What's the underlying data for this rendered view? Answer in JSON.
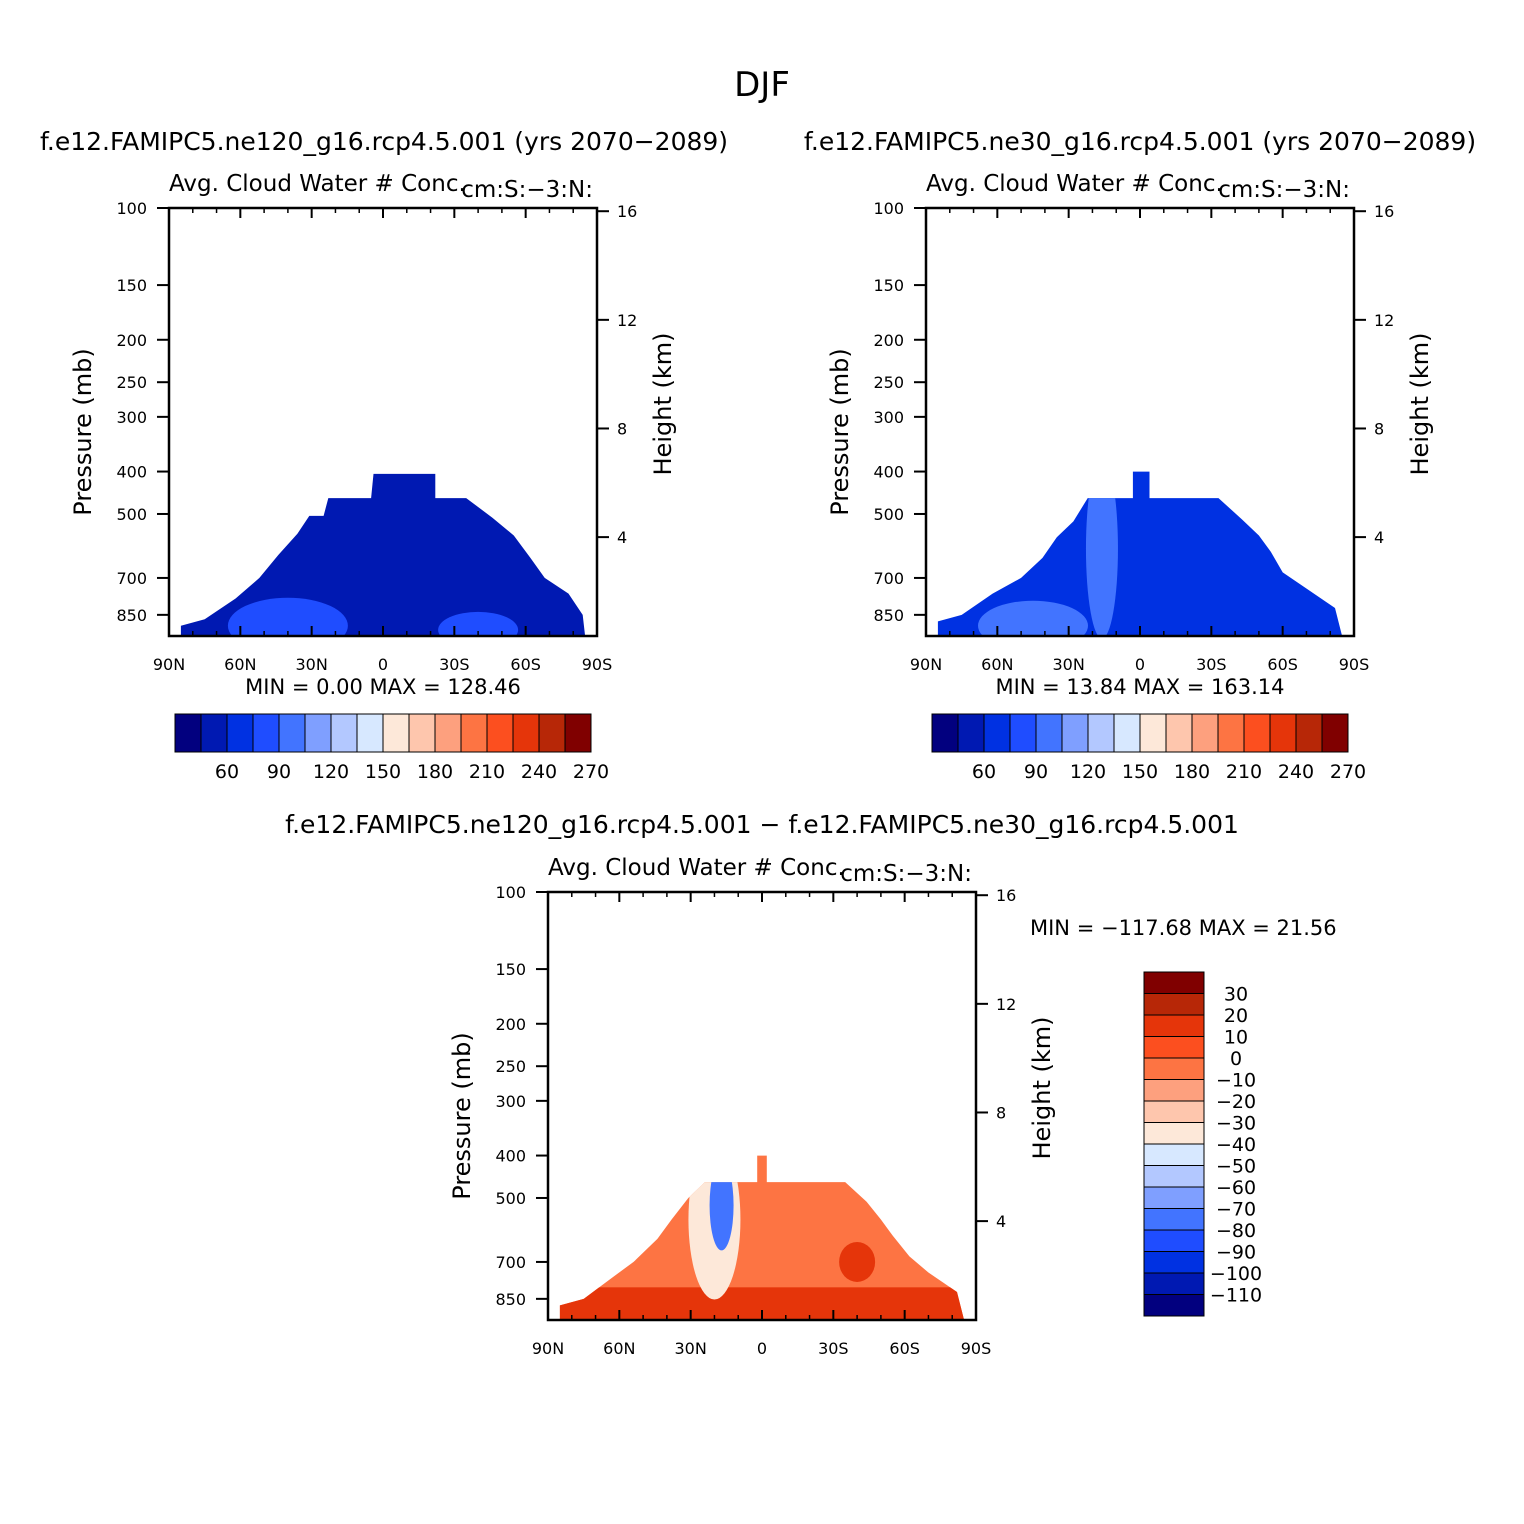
{
  "figure": {
    "title": "DJF"
  },
  "colors": {
    "abs_palette": [
      "#02007f",
      "#0019b2",
      "#0031e2",
      "#1f4dff",
      "#4274ff",
      "#7f9fff",
      "#b3c8ff",
      "#d7e8ff",
      "#fde8d9",
      "#fec6ad",
      "#fda07e",
      "#fd7443",
      "#fc4f1f",
      "#e5350a",
      "#b72707",
      "#800000"
    ],
    "diff_palette": [
      "#02007f",
      "#0019b2",
      "#0031e2",
      "#1f4dff",
      "#4274ff",
      "#7f9fff",
      "#b3c8ff",
      "#d7e8ff",
      "#fde8d9",
      "#fec6ad",
      "#fda07e",
      "#fd7443",
      "#fc4f1f",
      "#e5350a",
      "#b72707",
      "#800000"
    ]
  },
  "chart_data": [
    {
      "type": "heatmap",
      "panel": "top-left",
      "case_title": "f.e12.FAMIPC5.ne120_g16.rcp4.5.001 (yrs 2070−2089)",
      "left_title": "Avg. Cloud Water # Conc.",
      "right_title": "cm:S:−3:N:",
      "ylabel": "Pressure (mb)",
      "ylabel_right": "Height (km)",
      "x_ticklabels": [
        "90N",
        "60N",
        "30N",
        "0",
        "30S",
        "60S",
        "90S"
      ],
      "x_ticks": [
        90,
        60,
        30,
        0,
        -30,
        -60,
        -90
      ],
      "xlim": [
        90,
        -90
      ],
      "y_ticklabels": [
        "100",
        "150",
        "200",
        "250",
        "300",
        "400",
        "500",
        "700",
        "850"
      ],
      "y_ticks": [
        100,
        150,
        200,
        250,
        300,
        400,
        500,
        700,
        850
      ],
      "ylim": [
        100,
        950
      ],
      "yscale": "log",
      "height_ticklabels": [
        "16",
        "12",
        "8",
        "4"
      ],
      "height_ticks": [
        16,
        12,
        8,
        4
      ],
      "stats_text": "MIN =    0.00   MAX =  128.46",
      "min": 0.0,
      "max": 128.46,
      "colorbar": {
        "orientation": "horizontal",
        "labels": [
          "60",
          "90",
          "120",
          "150",
          "180",
          "210",
          "240",
          "270"
        ],
        "levels": [
          60,
          90,
          120,
          150,
          180,
          210,
          240,
          270
        ]
      },
      "field": {
        "outline": [
          [
            85,
            950
          ],
          [
            85,
            900
          ],
          [
            75,
            870
          ],
          [
            62,
            780
          ],
          [
            52,
            700
          ],
          [
            44,
            620
          ],
          [
            36,
            555
          ],
          [
            31,
            505
          ],
          [
            25,
            505
          ],
          [
            23,
            460
          ],
          [
            5,
            460
          ],
          [
            4,
            405
          ],
          [
            -22,
            405
          ],
          [
            -22,
            460
          ],
          [
            -35,
            460
          ],
          [
            -46,
            510
          ],
          [
            -55,
            560
          ],
          [
            -62,
            630
          ],
          [
            -68,
            700
          ],
          [
            -78,
            760
          ],
          [
            -84,
            850
          ],
          [
            -85,
            950
          ]
        ],
        "dominant_value": 40,
        "low_level_value": 80
      }
    },
    {
      "type": "heatmap",
      "panel": "top-right",
      "case_title": "f.e12.FAMIPC5.ne30_g16.rcp4.5.001 (yrs 2070−2089)",
      "left_title": "Avg. Cloud Water # Conc.",
      "right_title": "cm:S:−3:N:",
      "ylabel": "Pressure (mb)",
      "ylabel_right": "Height (km)",
      "x_ticklabels": [
        "90N",
        "60N",
        "30N",
        "0",
        "30S",
        "60S",
        "90S"
      ],
      "x_ticks": [
        90,
        60,
        30,
        0,
        -30,
        -60,
        -90
      ],
      "xlim": [
        90,
        -90
      ],
      "y_ticklabels": [
        "100",
        "150",
        "200",
        "250",
        "300",
        "400",
        "500",
        "700",
        "850"
      ],
      "y_ticks": [
        100,
        150,
        200,
        250,
        300,
        400,
        500,
        700,
        850
      ],
      "ylim": [
        100,
        950
      ],
      "yscale": "log",
      "height_ticklabels": [
        "16",
        "12",
        "8",
        "4"
      ],
      "height_ticks": [
        16,
        12,
        8,
        4
      ],
      "stats_text": "MIN =   13.84   MAX =  163.14",
      "min": 13.84,
      "max": 163.14,
      "colorbar": {
        "orientation": "horizontal",
        "labels": [
          "60",
          "90",
          "120",
          "150",
          "180",
          "210",
          "240",
          "270"
        ],
        "levels": [
          60,
          90,
          120,
          150,
          180,
          210,
          240,
          270
        ]
      },
      "field": {
        "outline": [
          [
            85,
            950
          ],
          [
            85,
            880
          ],
          [
            75,
            850
          ],
          [
            62,
            760
          ],
          [
            50,
            700
          ],
          [
            41,
            630
          ],
          [
            35,
            565
          ],
          [
            28,
            520
          ],
          [
            22,
            460
          ],
          [
            3,
            460
          ],
          [
            3,
            400
          ],
          [
            -4,
            400
          ],
          [
            -4,
            460
          ],
          [
            -33,
            460
          ],
          [
            -43,
            515
          ],
          [
            -50,
            560
          ],
          [
            -55,
            610
          ],
          [
            -60,
            680
          ],
          [
            -70,
            740
          ],
          [
            -82,
            820
          ],
          [
            -85,
            950
          ]
        ],
        "dominant_value": 50,
        "tropical_value": 90
      }
    },
    {
      "type": "heatmap",
      "panel": "bottom",
      "case_title": "f.e12.FAMIPC5.ne120_g16.rcp4.5.001 − f.e12.FAMIPC5.ne30_g16.rcp4.5.001",
      "left_title": "Avg. Cloud Water # Conc.",
      "right_title": "cm:S:−3:N:",
      "ylabel": "Pressure (mb)",
      "ylabel_right": "Height (km)",
      "x_ticklabels": [
        "90N",
        "60N",
        "30N",
        "0",
        "30S",
        "60S",
        "90S"
      ],
      "x_ticks": [
        90,
        60,
        30,
        0,
        -30,
        -60,
        -90
      ],
      "xlim": [
        90,
        -90
      ],
      "y_ticklabels": [
        "100",
        "150",
        "200",
        "250",
        "300",
        "400",
        "500",
        "700",
        "850"
      ],
      "y_ticks": [
        100,
        150,
        200,
        250,
        300,
        400,
        500,
        700,
        850
      ],
      "ylim": [
        100,
        950
      ],
      "yscale": "log",
      "height_ticklabels": [
        "16",
        "12",
        "8",
        "4"
      ],
      "height_ticks": [
        16,
        12,
        8,
        4
      ],
      "stats_text": "MIN = −117.68   MAX =   21.56",
      "min": -117.68,
      "max": 21.56,
      "colorbar": {
        "orientation": "vertical",
        "labels": [
          "30",
          "20",
          "10",
          "0",
          "−10",
          "−20",
          "−30",
          "−40",
          "−50",
          "−60",
          "−70",
          "−80",
          "−90",
          "−100",
          "−110"
        ],
        "levels": [
          30,
          20,
          10,
          0,
          -10,
          -20,
          -30,
          -40,
          -50,
          -60,
          -70,
          -80,
          -90,
          -100,
          -110
        ]
      },
      "field": {
        "outline": [
          [
            85,
            950
          ],
          [
            85,
            880
          ],
          [
            75,
            850
          ],
          [
            63,
            760
          ],
          [
            54,
            700
          ],
          [
            44,
            620
          ],
          [
            38,
            560
          ],
          [
            31,
            500
          ],
          [
            24,
            460
          ],
          [
            2,
            460
          ],
          [
            2,
            400
          ],
          [
            -2,
            400
          ],
          [
            -2,
            460
          ],
          [
            -35,
            460
          ],
          [
            -44,
            510
          ],
          [
            -50,
            560
          ],
          [
            -55,
            610
          ],
          [
            -62,
            680
          ],
          [
            -70,
            740
          ],
          [
            -82,
            820
          ],
          [
            -85,
            950
          ]
        ],
        "dominant_value": -5,
        "negative_core_value": -80
      }
    }
  ]
}
